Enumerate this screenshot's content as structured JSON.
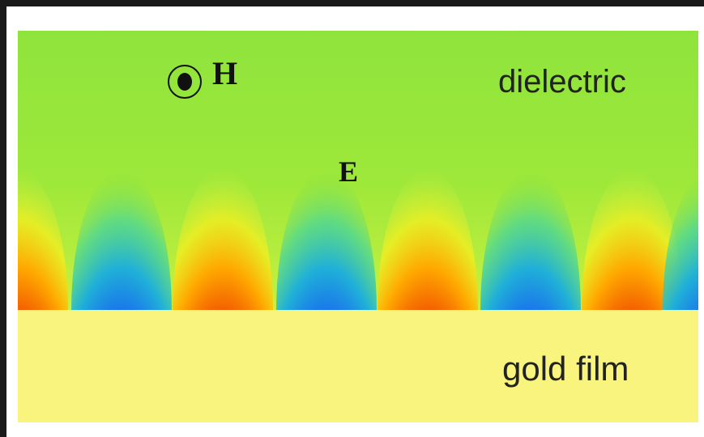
{
  "labels": {
    "magnetic_field": "H",
    "electric_field": "E",
    "upper_medium": "dielectric",
    "lower_medium": "gold film"
  }
}
